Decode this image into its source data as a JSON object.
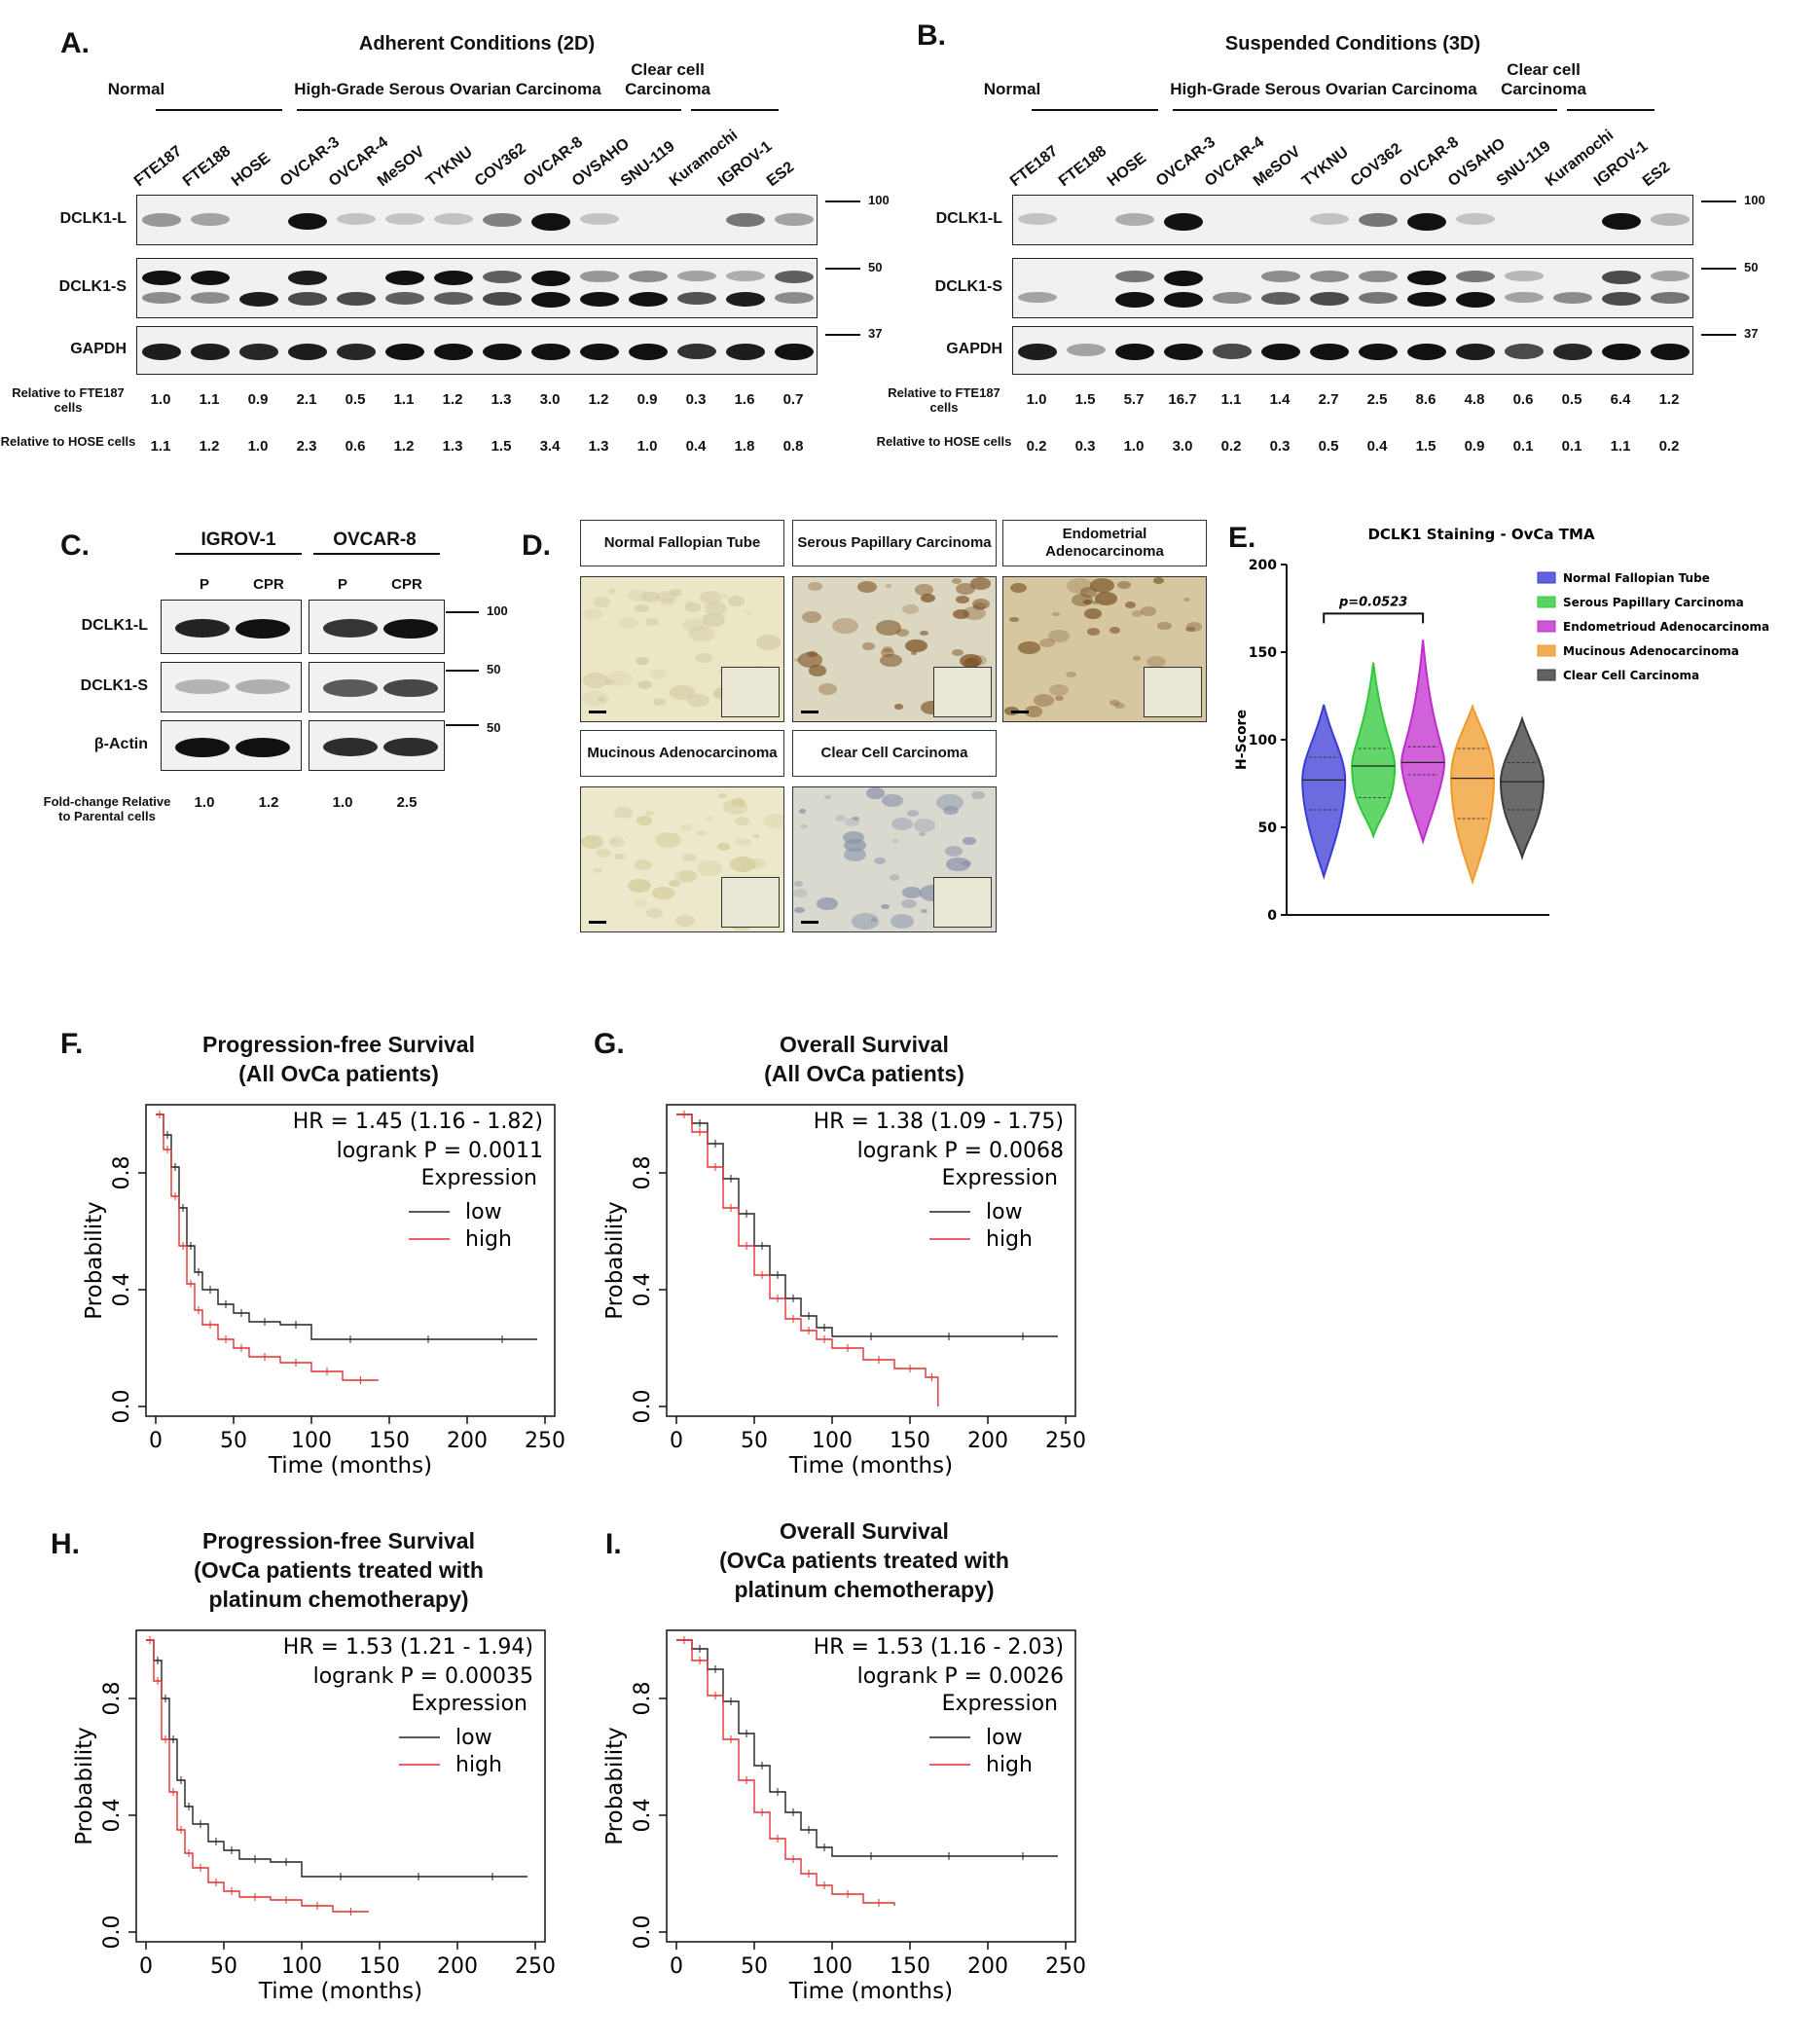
{
  "panelA": {
    "letter": "A.",
    "title": "Adherent Conditions (2D)",
    "groups": [
      "Normal",
      "High-Grade Serous Ovarian Carcinoma",
      "Clear cell Carcinoma"
    ],
    "lanes": [
      "FTE187",
      "FTE188",
      "HOSE",
      "OVCAR-3",
      "OVCAR-4",
      "MeSOV",
      "TYKNU",
      "COV362",
      "OVCAR-8",
      "OVSAHO",
      "SNU-119",
      "Kuramochi",
      "IGROV-1",
      "ES2"
    ],
    "rows": [
      "DCLK1-L",
      "DCLK1-S",
      "GAPDH"
    ],
    "markers": [
      "100",
      "50",
      "37"
    ],
    "quant_labels": [
      "Relative to FTE187 cells",
      "Relative to HOSE cells"
    ],
    "rel_fte187": [
      "1.0",
      "1.1",
      "0.9",
      "2.1",
      "0.5",
      "1.1",
      "1.2",
      "1.3",
      "3.0",
      "1.2",
      "0.9",
      "0.3",
      "1.6",
      "0.7"
    ],
    "rel_hose": [
      "1.1",
      "1.2",
      "1.0",
      "2.3",
      "0.6",
      "1.2",
      "1.3",
      "1.5",
      "3.4",
      "1.3",
      "1.0",
      "0.4",
      "1.8",
      "0.8"
    ]
  },
  "panelB": {
    "letter": "B.",
    "title": "Suspended Conditions (3D)",
    "groups": [
      "Normal",
      "High-Grade Serous Ovarian Carcinoma",
      "Clear cell Carcinoma"
    ],
    "lanes": [
      "FTE187",
      "FTE188",
      "HOSE",
      "OVCAR-3",
      "OVCAR-4",
      "MeSOV",
      "TYKNU",
      "COV362",
      "OVCAR-8",
      "OVSAHO",
      "SNU-119",
      "Kuramochi",
      "IGROV-1",
      "ES2"
    ],
    "rows": [
      "DCLK1-L",
      "DCLK1-S",
      "GAPDH"
    ],
    "markers": [
      "100",
      "50",
      "37"
    ],
    "quant_labels": [
      "Relative to FTE187 cells",
      "Relative to HOSE cells"
    ],
    "rel_fte187": [
      "1.0",
      "1.5",
      "5.7",
      "16.7",
      "1.1",
      "1.4",
      "2.7",
      "2.5",
      "8.6",
      "4.8",
      "0.6",
      "0.5",
      "6.4",
      "1.2"
    ],
    "rel_hose": [
      "0.2",
      "0.3",
      "1.0",
      "3.0",
      "0.2",
      "0.3",
      "0.5",
      "0.4",
      "1.5",
      "0.9",
      "0.1",
      "0.1",
      "1.1",
      "0.2"
    ]
  },
  "panelC": {
    "letter": "C.",
    "groups": [
      "IGROV-1",
      "OVCAR-8"
    ],
    "lanes": [
      "P",
      "CPR",
      "P",
      "CPR"
    ],
    "rows": [
      "DCLK1-L",
      "DCLK1-S",
      "β-Actin"
    ],
    "markers": [
      "100",
      "50",
      "50"
    ],
    "quant_label": "Fold-change Relative to Parental cells",
    "values": [
      "1.0",
      "1.2",
      "1.0",
      "2.5"
    ]
  },
  "panelD": {
    "letter": "D.",
    "tiles": [
      "Normal Fallopian Tube",
      "Serous Papillary Carcinoma",
      "Endometrial Adenocarcinoma",
      "Mucinous Adenocarcinoma",
      "Clear Cell Carcinoma"
    ]
  },
  "panelE": {
    "letter": "E.",
    "chart_data": {
      "type": "violin",
      "title": "DCLK1 Staining - OvCa TMA",
      "ylabel": "H-Score",
      "ylim": [
        0,
        200
      ],
      "yticks": [
        "0",
        "50",
        "100",
        "150",
        "200"
      ],
      "annotation": "p=0.0523",
      "series": [
        {
          "name": "Normal Fallopian Tube",
          "color": "#3b3bd6",
          "min": 22,
          "max": 120,
          "median": 77,
          "q1": 60,
          "q3": 90
        },
        {
          "name": "Serous Papillary Carcinoma",
          "color": "#2fc83a",
          "min": 45,
          "max": 144,
          "median": 85,
          "q1": 67,
          "q3": 95
        },
        {
          "name": "Endometrioud Adenocarcinoma",
          "color": "#c02ccc",
          "min": 42,
          "max": 157,
          "median": 87,
          "q1": 80,
          "q3": 96
        },
        {
          "name": "Mucinous Adenocarcinoma",
          "color": "#ef9a2a",
          "min": 19,
          "max": 119,
          "median": 78,
          "q1": 55,
          "q3": 95
        },
        {
          "name": "Clear Cell Carcinoma",
          "color": "#3a3a3a",
          "min": 33,
          "max": 112,
          "median": 76,
          "q1": 60,
          "q3": 87
        }
      ]
    }
  },
  "km": {
    "axis": {
      "xlabel": "Time (months)",
      "ylabel": "Probability",
      "xticks": [
        "0",
        "50",
        "100",
        "150",
        "200",
        "250"
      ],
      "yticks": [
        "0.0",
        "0.4",
        "0.8"
      ],
      "legend_title": "Expression",
      "legend_low": "low",
      "legend_high": "high"
    },
    "colors": {
      "low": "#222222",
      "high": "#e03030"
    },
    "plots": [
      {
        "letter": "F.",
        "title1": "Progression-free Survival",
        "title2": "(All OvCa patients)",
        "title3": "",
        "hr": "HR = 1.45 (1.16 - 1.82)",
        "p": "logrank P = 0.0011"
      },
      {
        "letter": "G.",
        "title1": "Overall Survival",
        "title2": "(All OvCa patients)",
        "title3": "",
        "hr": "HR = 1.38 (1.09 - 1.75)",
        "p": "logrank P = 0.0068"
      },
      {
        "letter": "H.",
        "title1": "Progression-free Survival",
        "title2": "(OvCa patients treated with",
        "title3": "platinum chemotherapy)",
        "hr": "HR = 1.53 (1.21 - 1.94)",
        "p": "logrank P = 0.00035"
      },
      {
        "letter": "I.",
        "title1": "Overall Survival",
        "title2": "(OvCa patients treated with",
        "title3": "platinum chemotherapy)",
        "hr": "HR = 1.53 (1.16 - 2.03)",
        "p": "logrank P = 0.0026"
      }
    ],
    "chart_data": [
      {
        "type": "line",
        "title": "Progression-free Survival (All OvCa patients)",
        "xlabel": "Time (months)",
        "ylabel": "Probability",
        "xlim": [
          0,
          250
        ],
        "ylim": [
          0,
          1
        ],
        "series": [
          {
            "name": "low",
            "x": [
              0,
              5,
              10,
              15,
              20,
              25,
              30,
              40,
              50,
              60,
              80,
              100,
              150,
              200,
              245
            ],
            "y": [
              1.0,
              0.93,
              0.82,
              0.68,
              0.55,
              0.46,
              0.4,
              0.35,
              0.32,
              0.29,
              0.28,
              0.23,
              0.23,
              0.23,
              0.23
            ]
          },
          {
            "name": "high",
            "x": [
              0,
              5,
              10,
              15,
              20,
              25,
              30,
              40,
              50,
              60,
              80,
              100,
              120,
              143
            ],
            "y": [
              1.0,
              0.88,
              0.72,
              0.55,
              0.42,
              0.33,
              0.28,
              0.23,
              0.2,
              0.17,
              0.15,
              0.12,
              0.09,
              0.09
            ]
          }
        ]
      },
      {
        "type": "line",
        "title": "Overall Survival (All OvCa patients)",
        "xlabel": "Time (months)",
        "ylabel": "Probability",
        "xlim": [
          0,
          250
        ],
        "ylim": [
          0,
          1
        ],
        "series": [
          {
            "name": "low",
            "x": [
              0,
              10,
              20,
              30,
              40,
              50,
              60,
              70,
              80,
              90,
              100,
              150,
              200,
              245
            ],
            "y": [
              1.0,
              0.97,
              0.9,
              0.78,
              0.66,
              0.55,
              0.45,
              0.37,
              0.31,
              0.27,
              0.24,
              0.24,
              0.24,
              0.24
            ]
          },
          {
            "name": "high",
            "x": [
              0,
              10,
              20,
              30,
              40,
              50,
              60,
              70,
              80,
              90,
              100,
              120,
              140,
              160,
              168
            ],
            "y": [
              1.0,
              0.94,
              0.82,
              0.68,
              0.55,
              0.45,
              0.37,
              0.3,
              0.26,
              0.23,
              0.2,
              0.16,
              0.13,
              0.1,
              0.0
            ]
          }
        ]
      },
      {
        "type": "line",
        "title": "Progression-free Survival (OvCa patients treated with platinum chemotherapy)",
        "xlabel": "Time (months)",
        "ylabel": "Probability",
        "xlim": [
          0,
          250
        ],
        "ylim": [
          0,
          1
        ],
        "series": [
          {
            "name": "low",
            "x": [
              0,
              5,
              10,
              15,
              20,
              25,
              30,
              40,
              50,
              60,
              80,
              100,
              150,
              200,
              245
            ],
            "y": [
              1.0,
              0.93,
              0.8,
              0.66,
              0.52,
              0.43,
              0.37,
              0.31,
              0.28,
              0.25,
              0.24,
              0.19,
              0.19,
              0.19,
              0.19
            ]
          },
          {
            "name": "high",
            "x": [
              0,
              5,
              10,
              15,
              20,
              25,
              30,
              40,
              50,
              60,
              80,
              100,
              120,
              143
            ],
            "y": [
              1.0,
              0.86,
              0.66,
              0.48,
              0.35,
              0.27,
              0.22,
              0.17,
              0.14,
              0.12,
              0.11,
              0.09,
              0.07,
              0.07
            ]
          }
        ]
      },
      {
        "type": "line",
        "title": "Overall Survival (OvCa patients treated with platinum chemotherapy)",
        "xlabel": "Time (months)",
        "ylabel": "Probability",
        "xlim": [
          0,
          250
        ],
        "ylim": [
          0,
          1
        ],
        "series": [
          {
            "name": "low",
            "x": [
              0,
              10,
              20,
              30,
              40,
              50,
              60,
              70,
              80,
              90,
              100,
              150,
              200,
              245
            ],
            "y": [
              1.0,
              0.97,
              0.9,
              0.79,
              0.68,
              0.57,
              0.48,
              0.41,
              0.35,
              0.29,
              0.26,
              0.26,
              0.26,
              0.26
            ]
          },
          {
            "name": "high",
            "x": [
              0,
              10,
              20,
              30,
              40,
              50,
              60,
              70,
              80,
              90,
              100,
              120,
              140
            ],
            "y": [
              1.0,
              0.93,
              0.81,
              0.66,
              0.52,
              0.41,
              0.32,
              0.25,
              0.2,
              0.16,
              0.13,
              0.1,
              0.09
            ]
          }
        ]
      }
    ]
  }
}
